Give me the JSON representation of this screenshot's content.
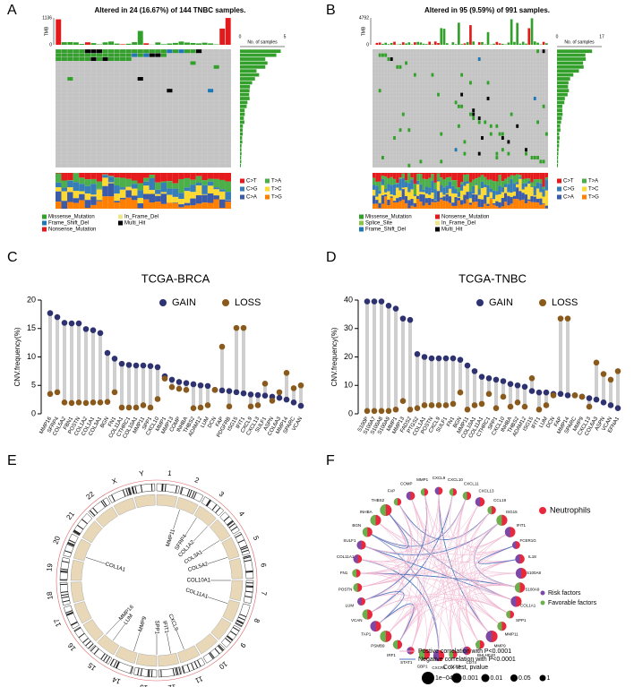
{
  "panel_labels": [
    "A",
    "B",
    "C",
    "D",
    "E",
    "F"
  ],
  "oncoplots": [
    {
      "title": "Altered in 24 (16.67%) of 144 TNBC samples.",
      "tmb_label": "TMB",
      "tmb_ticks": [
        "1136",
        "0"
      ],
      "samples_label": "No. of samples",
      "samples_ticks": [
        "0",
        "5"
      ],
      "snv_legend": [
        {
          "label": "C>T",
          "color": "#e41a1c"
        },
        {
          "label": "T>A",
          "color": "#4daf4a"
        },
        {
          "label": "C>G",
          "color": "#377eb8"
        },
        {
          "label": "T>C",
          "color": "#ffd92f"
        },
        {
          "label": "C>A",
          "color": "#3b5ba9"
        },
        {
          "label": "T>G",
          "color": "#ff7f00"
        }
      ],
      "variant_legend": [
        {
          "label": "Missense_Mutation",
          "color": "#33a02c"
        },
        {
          "label": "In_Frame_Del",
          "color": "#f0e68c"
        },
        {
          "label": "Frame_Shift_Del",
          "color": "#1f78b4"
        },
        {
          "label": "Multi_Hit",
          "color": "#000000"
        },
        {
          "label": "Nonsense_Mutation",
          "color": "#e31a1c"
        }
      ]
    },
    {
      "title": "Altered in 95 (9.59%) of 991 samples.",
      "tmb_label": "TMB",
      "tmb_ticks": [
        "4792",
        "0"
      ],
      "samples_label": "No. of samples",
      "samples_ticks": [
        "0",
        "17"
      ],
      "snv_legend": [
        {
          "label": "C>T",
          "color": "#e41a1c"
        },
        {
          "label": "T>A",
          "color": "#4daf4a"
        },
        {
          "label": "C>G",
          "color": "#377eb8"
        },
        {
          "label": "T>C",
          "color": "#ffd92f"
        },
        {
          "label": "C>A",
          "color": "#3b5ba9"
        },
        {
          "label": "T>G",
          "color": "#ff7f00"
        }
      ],
      "variant_legend": [
        {
          "label": "Missense_Mutation",
          "color": "#33a02c"
        },
        {
          "label": "Nonsense_Mutation",
          "color": "#e31a1c"
        },
        {
          "label": "Splice_Site",
          "color": "#8bc34a"
        },
        {
          "label": "In_Frame_Del",
          "color": "#f0e68c"
        },
        {
          "label": "Frame_Shift_Del",
          "color": "#1f78b4"
        },
        {
          "label": "Multi_Hit",
          "color": "#000000"
        }
      ]
    }
  ],
  "chart_data": [
    {
      "type": "lollipop",
      "title": "TCGA-BRCA",
      "y_label": "CNV.frequency(%)",
      "categories": [
        "MMP16",
        "SFRP4",
        "COL5A2",
        "FBN1",
        "POSTN",
        "COL1A2",
        "COL1A1",
        "COL3A1",
        "BGN",
        "FN1",
        "COL11A1",
        "CTHRC1",
        "COL10A1",
        "MMP11",
        "SPP1",
        "CXCL10",
        "MMP1",
        "MMP13",
        "COMP",
        "INHBA",
        "THBS2",
        "ADAM12",
        "LUM",
        "DCN",
        "FAP",
        "PDGFRB",
        "ISG15",
        "IFIT1",
        "CXCL9",
        "CXCL13",
        "SULF1",
        "ASPN",
        "COL6A3",
        "MMP14",
        "SPARC",
        "VCAN"
      ],
      "series": [
        {
          "name": "GAIN",
          "color": "#2e3270",
          "values": [
            17.7,
            17.0,
            16.0,
            15.9,
            15.9,
            14.9,
            14.7,
            14.2,
            10.7,
            9.7,
            8.8,
            8.6,
            8.5,
            8.5,
            8.4,
            8.2,
            6.6,
            6.0,
            5.6,
            5.4,
            5.2,
            5.0,
            4.9,
            4.2,
            4.1,
            4.0,
            3.8,
            3.6,
            3.4,
            3.3,
            3.2,
            3.0,
            2.8,
            2.5,
            2.0,
            1.4
          ]
        },
        {
          "name": "LOSS",
          "color": "#8a5a1c",
          "values": [
            3.5,
            3.8,
            2.0,
            1.9,
            2.0,
            1.9,
            2.0,
            2.0,
            2.1,
            3.8,
            1.1,
            1.1,
            1.1,
            1.5,
            1.1,
            2.6,
            6.2,
            4.7,
            4.4,
            4.2,
            1.0,
            1.1,
            1.5,
            4.2,
            11.8,
            1.3,
            15.1,
            15.1,
            1.3,
            1.5,
            5.3,
            2.3,
            3.8,
            7.2,
            4.5,
            5.0
          ]
        }
      ],
      "ylim": [
        0,
        20
      ],
      "yticks": [
        0,
        5,
        10,
        15,
        20
      ]
    },
    {
      "type": "lollipop",
      "title": "TCGA-TNBC",
      "y_label": "CNV.frequency(%)",
      "categories": [
        "S100P",
        "S100A7",
        "S100A8",
        "S100A9",
        "MMP1",
        "MMP13",
        "FADS2",
        "PTGS2",
        "COL1A1",
        "POSTN",
        "CXCL9",
        "SULF1",
        "FN1",
        "BGN",
        "MMP11",
        "COL10A1",
        "COL11A1",
        "CTHRC1",
        "SPP1",
        "CXCL10",
        "INHBA",
        "THBS2",
        "ADAM12",
        "ISG15",
        "IFIT1",
        "LUM",
        "DCN",
        "FAP",
        "MMP14",
        "SPARC",
        "MMP9",
        "CXCL13",
        "COL6A3",
        "ASPN",
        "VCAN",
        "EFNA1"
      ],
      "series": [
        {
          "name": "GAIN",
          "color": "#2e3270",
          "values": [
            39.5,
            39.5,
            39.5,
            38.0,
            37.0,
            33.5,
            33.0,
            21.0,
            20.0,
            19.5,
            19.5,
            19.5,
            19.5,
            19.0,
            17.0,
            15.0,
            13.0,
            12.5,
            12.0,
            11.5,
            10.5,
            10.0,
            9.5,
            8.0,
            7.5,
            7.5,
            7.0,
            7.0,
            6.5,
            6.5,
            6.0,
            5.5,
            5.0,
            4.0,
            3.0,
            2.0
          ]
        },
        {
          "name": "LOSS",
          "color": "#8a5a1c",
          "values": [
            1.0,
            1.0,
            1.0,
            1.0,
            1.5,
            4.5,
            1.5,
            2.0,
            3.0,
            3.0,
            3.0,
            3.0,
            3.5,
            7.5,
            1.5,
            3.0,
            3.5,
            7.0,
            2.0,
            6.0,
            2.5,
            4.0,
            2.5,
            12.5,
            1.5,
            3.0,
            6.5,
            33.5,
            33.5,
            6.5,
            6.0,
            2.5,
            18.0,
            14.0,
            12.0,
            15.0
          ]
        }
      ],
      "ylim": [
        0,
        40
      ],
      "yticks": [
        0,
        10,
        20,
        30,
        40
      ]
    }
  ],
  "circos": {
    "chromosomes": [
      "1",
      "2",
      "3",
      "4",
      "5",
      "6",
      "7",
      "8",
      "9",
      "10",
      "11",
      "12",
      "13",
      "14",
      "15",
      "16",
      "17",
      "18",
      "19",
      "20",
      "21",
      "22",
      "X",
      "Y"
    ],
    "genes": [
      "MMP11",
      "SFRP4",
      "COL1A2",
      "COL3A1",
      "COL5A2",
      "COL11A1",
      "MMP16",
      "LUM",
      "MMP9",
      "SPP1",
      "IFIT1",
      "CXCL9",
      "COL10A1",
      "COL1A1"
    ]
  },
  "network": {
    "nodes": [
      "CXCL9",
      "CXCL10",
      "CXCL11",
      "CXCL13",
      "CCL19",
      "ISG15",
      "IFIT1",
      "FCER1G",
      "IL18",
      "S100A8",
      "S100A9",
      "COL1A1",
      "SPP1",
      "MMP11",
      "MMP9",
      "BHLHE40",
      "CD74",
      "CCL5",
      "CXCR4",
      "GBP1",
      "STAT1",
      "IRF1",
      "PSMB9",
      "TAP1",
      "VCAN",
      "LUM",
      "POSTN",
      "FN1",
      "COL11A1",
      "SULF1",
      "BGN",
      "INHBA",
      "THBS2",
      "FAP",
      "COMP",
      "MMP1"
    ],
    "group_legend": [
      {
        "label": "Neutrophils",
        "color": "#e8283c"
      }
    ],
    "factor_legend": [
      {
        "label": "Risk factors",
        "color": "#7b4aa8"
      },
      {
        "label": "Favorable factors",
        "color": "#6ab04c"
      }
    ],
    "edge_legend": [
      {
        "label": "Postive correlation with P<0.0001",
        "color": "#f0a8c8"
      },
      {
        "label": "Negative correlation with P<0.0001",
        "color": "#4a78c0"
      }
    ],
    "size_title": "Cox test, pvalue",
    "size_labels": [
      "1e−04",
      "0.001",
      "0.01",
      "0.05",
      "1"
    ]
  }
}
